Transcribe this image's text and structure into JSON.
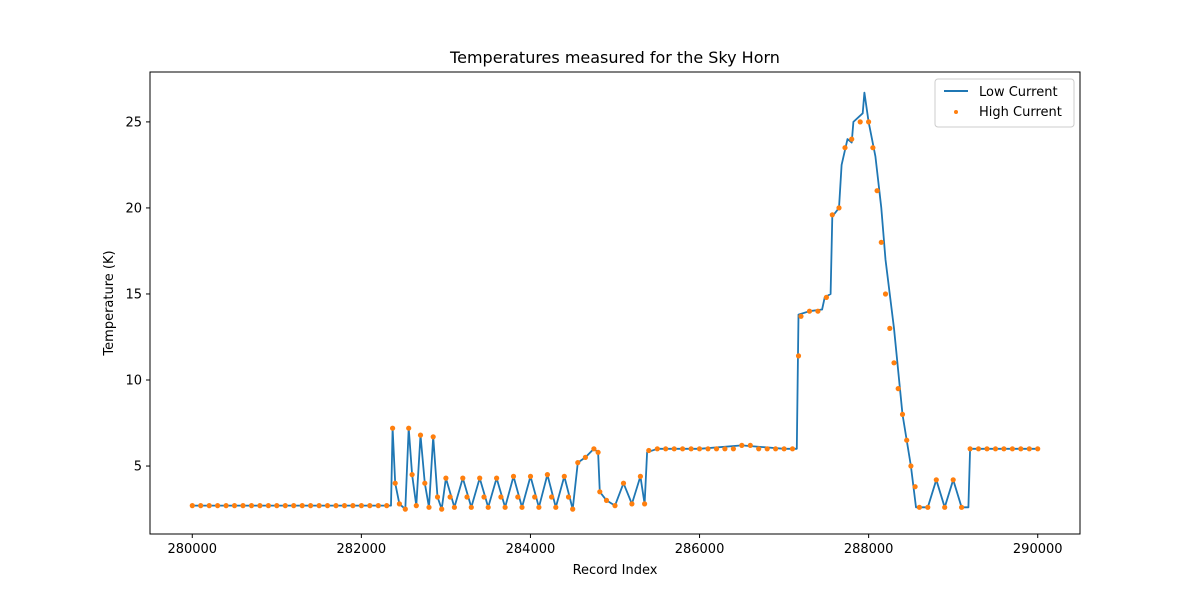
{
  "chart_data": {
    "type": "line",
    "title": "Temperatures measured for the Sky Horn",
    "xlabel": "Record Index",
    "ylabel": "Temperature (K)",
    "xlim": [
      279500,
      290500
    ],
    "ylim": [
      1.05,
      27.9
    ],
    "xticks": [
      280000,
      282000,
      284000,
      286000,
      288000,
      290000
    ],
    "yticks": [
      5,
      10,
      15,
      20,
      25
    ],
    "grid": false,
    "legend_position": "top-right",
    "series": [
      {
        "name": "Low Current",
        "style": "line",
        "color": "#1f77b4",
        "points": [
          [
            280000,
            2.7
          ],
          [
            280500,
            2.7
          ],
          [
            281000,
            2.7
          ],
          [
            281500,
            2.7
          ],
          [
            282000,
            2.7
          ],
          [
            282350,
            2.7
          ],
          [
            282370,
            7.2
          ],
          [
            282400,
            4.0
          ],
          [
            282450,
            2.8
          ],
          [
            282520,
            2.5
          ],
          [
            282560,
            7.2
          ],
          [
            282600,
            4.5
          ],
          [
            282650,
            2.7
          ],
          [
            282700,
            6.8
          ],
          [
            282750,
            4.0
          ],
          [
            282800,
            2.6
          ],
          [
            282850,
            6.7
          ],
          [
            282900,
            3.2
          ],
          [
            282950,
            2.5
          ],
          [
            283000,
            4.3
          ],
          [
            283100,
            2.6
          ],
          [
            283200,
            4.3
          ],
          [
            283300,
            2.6
          ],
          [
            283400,
            4.3
          ],
          [
            283500,
            2.6
          ],
          [
            283600,
            4.3
          ],
          [
            283700,
            2.6
          ],
          [
            283800,
            4.4
          ],
          [
            283900,
            2.6
          ],
          [
            284000,
            4.4
          ],
          [
            284100,
            2.6
          ],
          [
            284200,
            4.5
          ],
          [
            284300,
            2.6
          ],
          [
            284400,
            4.4
          ],
          [
            284500,
            2.5
          ],
          [
            284560,
            5.2
          ],
          [
            284650,
            5.5
          ],
          [
            284750,
            6.0
          ],
          [
            284800,
            5.8
          ],
          [
            284820,
            3.5
          ],
          [
            284900,
            3.0
          ],
          [
            285000,
            2.7
          ],
          [
            285100,
            4.0
          ],
          [
            285200,
            2.8
          ],
          [
            285300,
            4.4
          ],
          [
            285350,
            2.8
          ],
          [
            285380,
            5.8
          ],
          [
            285500,
            6.0
          ],
          [
            286000,
            6.0
          ],
          [
            286500,
            6.2
          ],
          [
            287000,
            6.0
          ],
          [
            287150,
            6.0
          ],
          [
            287170,
            13.8
          ],
          [
            287300,
            14.0
          ],
          [
            287450,
            14.1
          ],
          [
            287480,
            14.8
          ],
          [
            287550,
            15.0
          ],
          [
            287570,
            19.5
          ],
          [
            287650,
            20.0
          ],
          [
            287680,
            22.5
          ],
          [
            287750,
            24.0
          ],
          [
            287800,
            23.8
          ],
          [
            287820,
            25.0
          ],
          [
            287930,
            25.5
          ],
          [
            287950,
            26.7
          ],
          [
            288000,
            25.0
          ],
          [
            288080,
            23.0
          ],
          [
            288150,
            20.0
          ],
          [
            288200,
            17.0
          ],
          [
            288300,
            13.0
          ],
          [
            288400,
            8.0
          ],
          [
            288500,
            5.0
          ],
          [
            288560,
            2.6
          ],
          [
            288700,
            2.6
          ],
          [
            288800,
            4.2
          ],
          [
            288900,
            2.6
          ],
          [
            289000,
            4.2
          ],
          [
            289100,
            2.6
          ],
          [
            289180,
            2.6
          ],
          [
            289200,
            6.0
          ],
          [
            289500,
            6.0
          ],
          [
            290000,
            6.0
          ]
        ]
      },
      {
        "name": "High Current",
        "style": "scatter",
        "color": "#ff7f0e",
        "points": [
          [
            280000,
            2.7
          ],
          [
            280100,
            2.7
          ],
          [
            280200,
            2.7
          ],
          [
            280300,
            2.7
          ],
          [
            280400,
            2.7
          ],
          [
            280500,
            2.7
          ],
          [
            280600,
            2.7
          ],
          [
            280700,
            2.7
          ],
          [
            280800,
            2.7
          ],
          [
            280900,
            2.7
          ],
          [
            281000,
            2.7
          ],
          [
            281100,
            2.7
          ],
          [
            281200,
            2.7
          ],
          [
            281300,
            2.7
          ],
          [
            281400,
            2.7
          ],
          [
            281500,
            2.7
          ],
          [
            281600,
            2.7
          ],
          [
            281700,
            2.7
          ],
          [
            281800,
            2.7
          ],
          [
            281900,
            2.7
          ],
          [
            282000,
            2.7
          ],
          [
            282100,
            2.7
          ],
          [
            282200,
            2.7
          ],
          [
            282300,
            2.7
          ],
          [
            282370,
            7.2
          ],
          [
            282400,
            4.0
          ],
          [
            282450,
            2.8
          ],
          [
            282520,
            2.5
          ],
          [
            282560,
            7.2
          ],
          [
            282600,
            4.5
          ],
          [
            282650,
            2.7
          ],
          [
            282700,
            6.8
          ],
          [
            282750,
            4.0
          ],
          [
            282800,
            2.6
          ],
          [
            282850,
            6.7
          ],
          [
            282900,
            3.2
          ],
          [
            282950,
            2.5
          ],
          [
            283000,
            4.3
          ],
          [
            283050,
            3.2
          ],
          [
            283100,
            2.6
          ],
          [
            283200,
            4.3
          ],
          [
            283250,
            3.2
          ],
          [
            283300,
            2.6
          ],
          [
            283400,
            4.3
          ],
          [
            283450,
            3.2
          ],
          [
            283500,
            2.6
          ],
          [
            283600,
            4.3
          ],
          [
            283650,
            3.2
          ],
          [
            283700,
            2.6
          ],
          [
            283800,
            4.4
          ],
          [
            283850,
            3.2
          ],
          [
            283900,
            2.6
          ],
          [
            284000,
            4.4
          ],
          [
            284050,
            3.2
          ],
          [
            284100,
            2.6
          ],
          [
            284200,
            4.5
          ],
          [
            284250,
            3.2
          ],
          [
            284300,
            2.6
          ],
          [
            284400,
            4.4
          ],
          [
            284450,
            3.2
          ],
          [
            284500,
            2.5
          ],
          [
            284560,
            5.2
          ],
          [
            284650,
            5.5
          ],
          [
            284750,
            6.0
          ],
          [
            284800,
            5.8
          ],
          [
            284820,
            3.5
          ],
          [
            284900,
            3.0
          ],
          [
            285000,
            2.7
          ],
          [
            285100,
            4.0
          ],
          [
            285200,
            2.8
          ],
          [
            285300,
            4.4
          ],
          [
            285350,
            2.8
          ],
          [
            285400,
            5.9
          ],
          [
            285500,
            6.0
          ],
          [
            285600,
            6.0
          ],
          [
            285700,
            6.0
          ],
          [
            285800,
            6.0
          ],
          [
            285900,
            6.0
          ],
          [
            286000,
            6.0
          ],
          [
            286100,
            6.0
          ],
          [
            286200,
            6.0
          ],
          [
            286300,
            6.0
          ],
          [
            286400,
            6.0
          ],
          [
            286500,
            6.2
          ],
          [
            286600,
            6.2
          ],
          [
            286700,
            6.0
          ],
          [
            286800,
            6.0
          ],
          [
            286900,
            6.0
          ],
          [
            287000,
            6.0
          ],
          [
            287100,
            6.0
          ],
          [
            287170,
            11.4
          ],
          [
            287200,
            13.7
          ],
          [
            287300,
            14.0
          ],
          [
            287400,
            14.0
          ],
          [
            287500,
            14.8
          ],
          [
            287570,
            19.6
          ],
          [
            287650,
            20.0
          ],
          [
            287720,
            23.5
          ],
          [
            287800,
            24.0
          ],
          [
            287900,
            25.0
          ],
          [
            288000,
            25.0
          ],
          [
            288050,
            23.5
          ],
          [
            288100,
            21.0
          ],
          [
            288150,
            18.0
          ],
          [
            288200,
            15.0
          ],
          [
            288250,
            13.0
          ],
          [
            288300,
            11.0
          ],
          [
            288350,
            9.5
          ],
          [
            288400,
            8.0
          ],
          [
            288450,
            6.5
          ],
          [
            288500,
            5.0
          ],
          [
            288550,
            3.8
          ],
          [
            288600,
            2.6
          ],
          [
            288700,
            2.6
          ],
          [
            288800,
            4.2
          ],
          [
            288900,
            2.6
          ],
          [
            289000,
            4.2
          ],
          [
            289100,
            2.6
          ],
          [
            289200,
            6.0
          ],
          [
            289300,
            6.0
          ],
          [
            289400,
            6.0
          ],
          [
            289500,
            6.0
          ],
          [
            289600,
            6.0
          ],
          [
            289700,
            6.0
          ],
          [
            289800,
            6.0
          ],
          [
            289900,
            6.0
          ],
          [
            290000,
            6.0
          ]
        ]
      }
    ]
  }
}
